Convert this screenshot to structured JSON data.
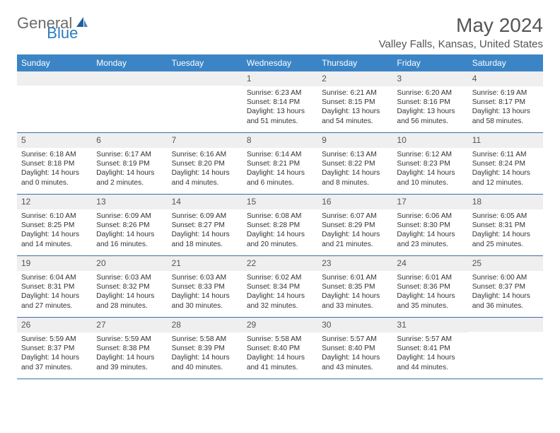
{
  "logo": {
    "general": "General",
    "blue": "Blue"
  },
  "title": "May 2024",
  "location": "Valley Falls, Kansas, United States",
  "colors": {
    "header_bg": "#3b85c6",
    "header_text": "#ffffff",
    "daynum_bg": "#efefef",
    "border": "#3b6fa0",
    "logo_gray": "#6b6b6b",
    "logo_blue": "#2b7cc0"
  },
  "day_names": [
    "Sunday",
    "Monday",
    "Tuesday",
    "Wednesday",
    "Thursday",
    "Friday",
    "Saturday"
  ],
  "weeks": [
    [
      {
        "n": "",
        "sunrise": "",
        "sunset": "",
        "daylight": ""
      },
      {
        "n": "",
        "sunrise": "",
        "sunset": "",
        "daylight": ""
      },
      {
        "n": "",
        "sunrise": "",
        "sunset": "",
        "daylight": ""
      },
      {
        "n": "1",
        "sunrise": "Sunrise: 6:23 AM",
        "sunset": "Sunset: 8:14 PM",
        "daylight": "Daylight: 13 hours and 51 minutes."
      },
      {
        "n": "2",
        "sunrise": "Sunrise: 6:21 AM",
        "sunset": "Sunset: 8:15 PM",
        "daylight": "Daylight: 13 hours and 54 minutes."
      },
      {
        "n": "3",
        "sunrise": "Sunrise: 6:20 AM",
        "sunset": "Sunset: 8:16 PM",
        "daylight": "Daylight: 13 hours and 56 minutes."
      },
      {
        "n": "4",
        "sunrise": "Sunrise: 6:19 AM",
        "sunset": "Sunset: 8:17 PM",
        "daylight": "Daylight: 13 hours and 58 minutes."
      }
    ],
    [
      {
        "n": "5",
        "sunrise": "Sunrise: 6:18 AM",
        "sunset": "Sunset: 8:18 PM",
        "daylight": "Daylight: 14 hours and 0 minutes."
      },
      {
        "n": "6",
        "sunrise": "Sunrise: 6:17 AM",
        "sunset": "Sunset: 8:19 PM",
        "daylight": "Daylight: 14 hours and 2 minutes."
      },
      {
        "n": "7",
        "sunrise": "Sunrise: 6:16 AM",
        "sunset": "Sunset: 8:20 PM",
        "daylight": "Daylight: 14 hours and 4 minutes."
      },
      {
        "n": "8",
        "sunrise": "Sunrise: 6:14 AM",
        "sunset": "Sunset: 8:21 PM",
        "daylight": "Daylight: 14 hours and 6 minutes."
      },
      {
        "n": "9",
        "sunrise": "Sunrise: 6:13 AM",
        "sunset": "Sunset: 8:22 PM",
        "daylight": "Daylight: 14 hours and 8 minutes."
      },
      {
        "n": "10",
        "sunrise": "Sunrise: 6:12 AM",
        "sunset": "Sunset: 8:23 PM",
        "daylight": "Daylight: 14 hours and 10 minutes."
      },
      {
        "n": "11",
        "sunrise": "Sunrise: 6:11 AM",
        "sunset": "Sunset: 8:24 PM",
        "daylight": "Daylight: 14 hours and 12 minutes."
      }
    ],
    [
      {
        "n": "12",
        "sunrise": "Sunrise: 6:10 AM",
        "sunset": "Sunset: 8:25 PM",
        "daylight": "Daylight: 14 hours and 14 minutes."
      },
      {
        "n": "13",
        "sunrise": "Sunrise: 6:09 AM",
        "sunset": "Sunset: 8:26 PM",
        "daylight": "Daylight: 14 hours and 16 minutes."
      },
      {
        "n": "14",
        "sunrise": "Sunrise: 6:09 AM",
        "sunset": "Sunset: 8:27 PM",
        "daylight": "Daylight: 14 hours and 18 minutes."
      },
      {
        "n": "15",
        "sunrise": "Sunrise: 6:08 AM",
        "sunset": "Sunset: 8:28 PM",
        "daylight": "Daylight: 14 hours and 20 minutes."
      },
      {
        "n": "16",
        "sunrise": "Sunrise: 6:07 AM",
        "sunset": "Sunset: 8:29 PM",
        "daylight": "Daylight: 14 hours and 21 minutes."
      },
      {
        "n": "17",
        "sunrise": "Sunrise: 6:06 AM",
        "sunset": "Sunset: 8:30 PM",
        "daylight": "Daylight: 14 hours and 23 minutes."
      },
      {
        "n": "18",
        "sunrise": "Sunrise: 6:05 AM",
        "sunset": "Sunset: 8:31 PM",
        "daylight": "Daylight: 14 hours and 25 minutes."
      }
    ],
    [
      {
        "n": "19",
        "sunrise": "Sunrise: 6:04 AM",
        "sunset": "Sunset: 8:31 PM",
        "daylight": "Daylight: 14 hours and 27 minutes."
      },
      {
        "n": "20",
        "sunrise": "Sunrise: 6:03 AM",
        "sunset": "Sunset: 8:32 PM",
        "daylight": "Daylight: 14 hours and 28 minutes."
      },
      {
        "n": "21",
        "sunrise": "Sunrise: 6:03 AM",
        "sunset": "Sunset: 8:33 PM",
        "daylight": "Daylight: 14 hours and 30 minutes."
      },
      {
        "n": "22",
        "sunrise": "Sunrise: 6:02 AM",
        "sunset": "Sunset: 8:34 PM",
        "daylight": "Daylight: 14 hours and 32 minutes."
      },
      {
        "n": "23",
        "sunrise": "Sunrise: 6:01 AM",
        "sunset": "Sunset: 8:35 PM",
        "daylight": "Daylight: 14 hours and 33 minutes."
      },
      {
        "n": "24",
        "sunrise": "Sunrise: 6:01 AM",
        "sunset": "Sunset: 8:36 PM",
        "daylight": "Daylight: 14 hours and 35 minutes."
      },
      {
        "n": "25",
        "sunrise": "Sunrise: 6:00 AM",
        "sunset": "Sunset: 8:37 PM",
        "daylight": "Daylight: 14 hours and 36 minutes."
      }
    ],
    [
      {
        "n": "26",
        "sunrise": "Sunrise: 5:59 AM",
        "sunset": "Sunset: 8:37 PM",
        "daylight": "Daylight: 14 hours and 37 minutes."
      },
      {
        "n": "27",
        "sunrise": "Sunrise: 5:59 AM",
        "sunset": "Sunset: 8:38 PM",
        "daylight": "Daylight: 14 hours and 39 minutes."
      },
      {
        "n": "28",
        "sunrise": "Sunrise: 5:58 AM",
        "sunset": "Sunset: 8:39 PM",
        "daylight": "Daylight: 14 hours and 40 minutes."
      },
      {
        "n": "29",
        "sunrise": "Sunrise: 5:58 AM",
        "sunset": "Sunset: 8:40 PM",
        "daylight": "Daylight: 14 hours and 41 minutes."
      },
      {
        "n": "30",
        "sunrise": "Sunrise: 5:57 AM",
        "sunset": "Sunset: 8:40 PM",
        "daylight": "Daylight: 14 hours and 43 minutes."
      },
      {
        "n": "31",
        "sunrise": "Sunrise: 5:57 AM",
        "sunset": "Sunset: 8:41 PM",
        "daylight": "Daylight: 14 hours and 44 minutes."
      },
      {
        "n": "",
        "sunrise": "",
        "sunset": "",
        "daylight": ""
      }
    ]
  ]
}
